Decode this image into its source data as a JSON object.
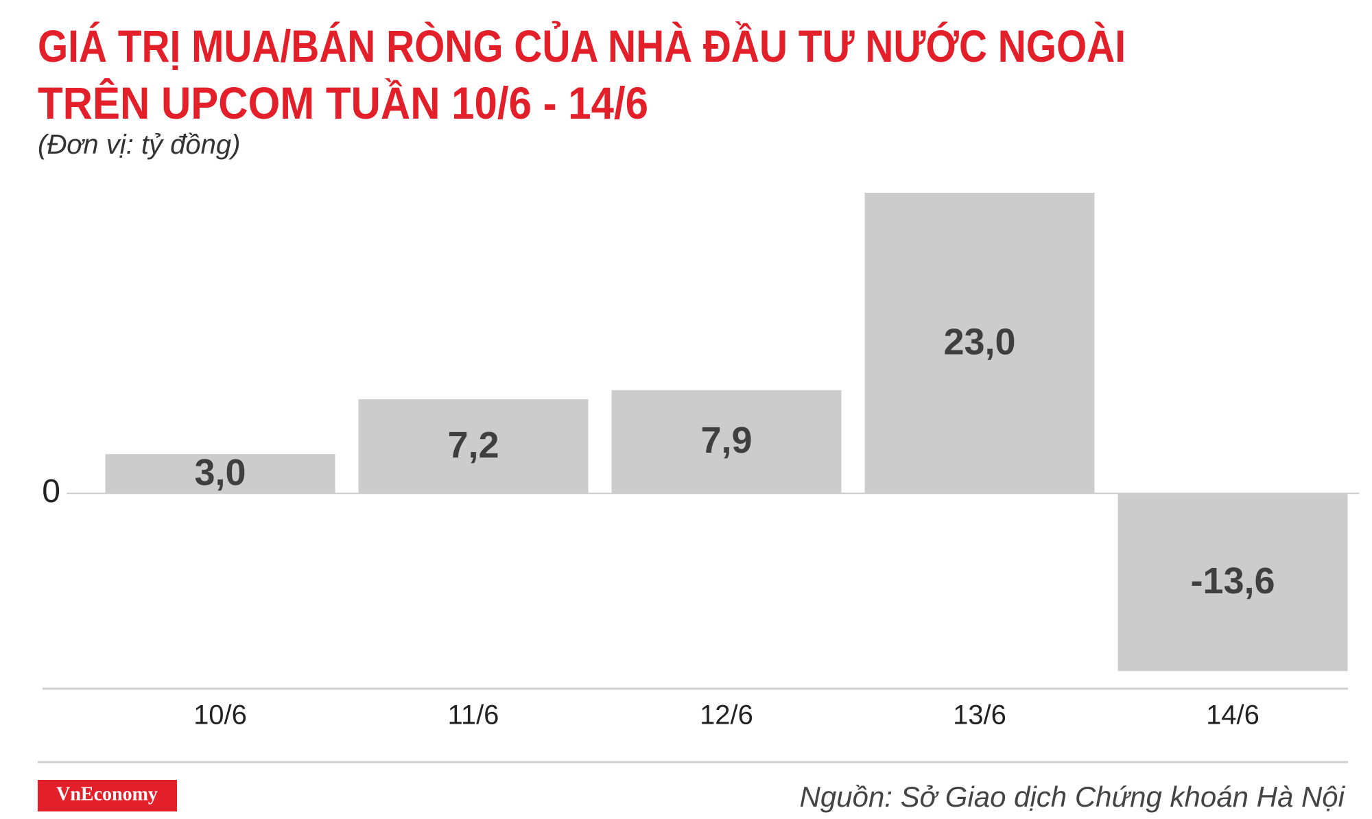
{
  "chart_data": {
    "type": "bar",
    "title": [
      "GIÁ TRỊ MUA/BÁN RÒNG CỦA NHÀ ĐẦU TƯ NƯỚC NGOÀI",
      "TRÊN UPCOM TUẦN 10/6 - 14/6"
    ],
    "subtitle": "(Đơn vị: tỷ đồng)",
    "categories": [
      "10/6",
      "11/6",
      "12/6",
      "13/6",
      "14/6"
    ],
    "values": [
      3.0,
      7.2,
      7.9,
      23.0,
      -13.6
    ],
    "value_labels": [
      "3,0",
      "7,2",
      "7,9",
      "23,0",
      "-13,6"
    ],
    "color": "#cccccc",
    "ylim": [
      -15,
      24
    ],
    "yticks": [
      0
    ],
    "source": "Nguồn: Sở Giao dịch Chứng khoán Hà Nội",
    "brand": "VnEconomy"
  }
}
